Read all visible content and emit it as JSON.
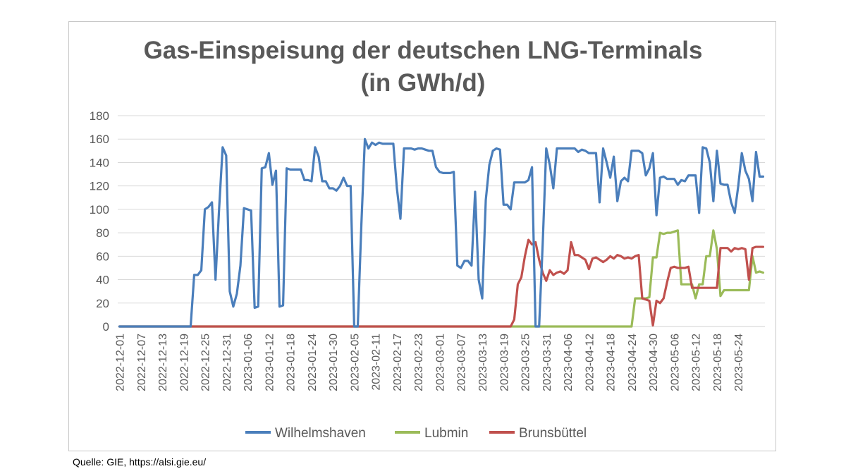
{
  "source_note": "Quelle: GIE, https://alsi.gie.eu/",
  "chart_data": {
    "type": "line",
    "title": "Gas-Einspeisung der deutschen LNG-Terminals",
    "subtitle": "(in GWh/d)",
    "ylim": [
      0,
      180
    ],
    "yticks": [
      0,
      20,
      40,
      60,
      80,
      100,
      120,
      140,
      160,
      180
    ],
    "y_tick_labels": [
      "0",
      "20",
      "40",
      "60",
      "80",
      "100",
      "120",
      "140",
      "160",
      "180"
    ],
    "grid": true,
    "legend_position": "bottom",
    "x_start": "2022-12-01",
    "x_end": "2023-05-31",
    "x_tick_labels": [
      "2022-12-01",
      "2022-12-07",
      "2022-12-13",
      "2022-12-19",
      "2022-12-25",
      "2022-12-31",
      "2023-01-06",
      "2023-01-12",
      "2023-01-18",
      "2023-01-24",
      "2023-01-30",
      "2023-02-05",
      "2023-02-11",
      "2023-02-17",
      "2023-02-23",
      "2023-03-01",
      "2023-03-07",
      "2023-03-13",
      "2023-03-19",
      "2023-03-25",
      "2023-03-31",
      "2023-04-06",
      "2023-04-12",
      "2023-04-18",
      "2023-04-24",
      "2023-04-30",
      "2023-05-06",
      "2023-05-12",
      "2023-05-18",
      "2023-05-24"
    ],
    "series": [
      {
        "name": "Wilhelmshaven",
        "color": "#4a7ebb",
        "points": [
          [
            "2022-12-01",
            0
          ],
          [
            "2022-12-21",
            0
          ],
          [
            "2022-12-22",
            44
          ],
          [
            "2022-12-23",
            44
          ],
          [
            "2022-12-24",
            48
          ],
          [
            "2022-12-25",
            100
          ],
          [
            "2022-12-26",
            102
          ],
          [
            "2022-12-27",
            106
          ],
          [
            "2022-12-28",
            40
          ],
          [
            "2022-12-29",
            100
          ],
          [
            "2022-12-30",
            153
          ],
          [
            "2022-12-31",
            146
          ],
          [
            "2023-01-01",
            30
          ],
          [
            "2023-01-02",
            17
          ],
          [
            "2023-01-03",
            28
          ],
          [
            "2023-01-04",
            52
          ],
          [
            "2023-01-05",
            101
          ],
          [
            "2023-01-06",
            100
          ],
          [
            "2023-01-07",
            99
          ],
          [
            "2023-01-08",
            16
          ],
          [
            "2023-01-09",
            17
          ],
          [
            "2023-01-10",
            135
          ],
          [
            "2023-01-11",
            136
          ],
          [
            "2023-01-12",
            148
          ],
          [
            "2023-01-13",
            121
          ],
          [
            "2023-01-14",
            133
          ],
          [
            "2023-01-15",
            17
          ],
          [
            "2023-01-16",
            18
          ],
          [
            "2023-01-17",
            135
          ],
          [
            "2023-01-18",
            134
          ],
          [
            "2023-01-19",
            134
          ],
          [
            "2023-01-20",
            134
          ],
          [
            "2023-01-21",
            134
          ],
          [
            "2023-01-22",
            125
          ],
          [
            "2023-01-23",
            125
          ],
          [
            "2023-01-24",
            124
          ],
          [
            "2023-01-25",
            153
          ],
          [
            "2023-01-26",
            145
          ],
          [
            "2023-01-27",
            124
          ],
          [
            "2023-01-28",
            124
          ],
          [
            "2023-01-29",
            118
          ],
          [
            "2023-01-30",
            118
          ],
          [
            "2023-01-31",
            116
          ],
          [
            "2023-02-01",
            120
          ],
          [
            "2023-02-02",
            127
          ],
          [
            "2023-02-03",
            120
          ],
          [
            "2023-02-04",
            120
          ],
          [
            "2023-02-05",
            0
          ],
          [
            "2023-02-06",
            0
          ],
          [
            "2023-02-07",
            86
          ],
          [
            "2023-02-08",
            160
          ],
          [
            "2023-02-09",
            152
          ],
          [
            "2023-02-10",
            157
          ],
          [
            "2023-02-11",
            155
          ],
          [
            "2023-02-12",
            157
          ],
          [
            "2023-02-13",
            156
          ],
          [
            "2023-02-14",
            156
          ],
          [
            "2023-02-15",
            156
          ],
          [
            "2023-02-16",
            156
          ],
          [
            "2023-02-17",
            118
          ],
          [
            "2023-02-18",
            92
          ],
          [
            "2023-02-19",
            152
          ],
          [
            "2023-02-20",
            152
          ],
          [
            "2023-02-21",
            152
          ],
          [
            "2023-02-22",
            151
          ],
          [
            "2023-02-23",
            152
          ],
          [
            "2023-02-24",
            152
          ],
          [
            "2023-02-25",
            151
          ],
          [
            "2023-02-26",
            150
          ],
          [
            "2023-02-27",
            150
          ],
          [
            "2023-02-28",
            136
          ],
          [
            "2023-03-01",
            132
          ],
          [
            "2023-03-02",
            131
          ],
          [
            "2023-03-03",
            131
          ],
          [
            "2023-03-04",
            131
          ],
          [
            "2023-03-05",
            132
          ],
          [
            "2023-03-06",
            52
          ],
          [
            "2023-03-07",
            50
          ],
          [
            "2023-03-08",
            56
          ],
          [
            "2023-03-09",
            56
          ],
          [
            "2023-03-10",
            52
          ],
          [
            "2023-03-11",
            115
          ],
          [
            "2023-03-12",
            40
          ],
          [
            "2023-03-13",
            24
          ],
          [
            "2023-03-14",
            108
          ],
          [
            "2023-03-15",
            138
          ],
          [
            "2023-03-16",
            150
          ],
          [
            "2023-03-17",
            152
          ],
          [
            "2023-03-18",
            151
          ],
          [
            "2023-03-19",
            104
          ],
          [
            "2023-03-20",
            104
          ],
          [
            "2023-03-21",
            100
          ],
          [
            "2023-03-22",
            123
          ],
          [
            "2023-03-23",
            123
          ],
          [
            "2023-03-24",
            123
          ],
          [
            "2023-03-25",
            123
          ],
          [
            "2023-03-26",
            125
          ],
          [
            "2023-03-27",
            136
          ],
          [
            "2023-03-28",
            0
          ],
          [
            "2023-03-29",
            0
          ],
          [
            "2023-03-30",
            70
          ],
          [
            "2023-03-31",
            152
          ],
          [
            "2023-04-01",
            138
          ],
          [
            "2023-04-02",
            118
          ],
          [
            "2023-04-03",
            152
          ],
          [
            "2023-04-04",
            152
          ],
          [
            "2023-04-05",
            152
          ],
          [
            "2023-04-06",
            152
          ],
          [
            "2023-04-07",
            152
          ],
          [
            "2023-04-08",
            152
          ],
          [
            "2023-04-09",
            149
          ],
          [
            "2023-04-10",
            151
          ],
          [
            "2023-04-11",
            150
          ],
          [
            "2023-04-12",
            148
          ],
          [
            "2023-04-13",
            148
          ],
          [
            "2023-04-14",
            148
          ],
          [
            "2023-04-15",
            106
          ],
          [
            "2023-04-16",
            152
          ],
          [
            "2023-04-17",
            140
          ],
          [
            "2023-04-18",
            127
          ],
          [
            "2023-04-19",
            145
          ],
          [
            "2023-04-20",
            107
          ],
          [
            "2023-04-21",
            124
          ],
          [
            "2023-04-22",
            127
          ],
          [
            "2023-04-23",
            124
          ],
          [
            "2023-04-24",
            150
          ],
          [
            "2023-04-25",
            150
          ],
          [
            "2023-04-26",
            150
          ],
          [
            "2023-04-27",
            148
          ],
          [
            "2023-04-28",
            129
          ],
          [
            "2023-04-29",
            135
          ],
          [
            "2023-04-30",
            148
          ],
          [
            "2023-05-01",
            95
          ],
          [
            "2023-05-02",
            127
          ],
          [
            "2023-05-03",
            128
          ],
          [
            "2023-05-04",
            126
          ],
          [
            "2023-05-05",
            126
          ],
          [
            "2023-05-06",
            126
          ],
          [
            "2023-05-07",
            121
          ],
          [
            "2023-05-08",
            125
          ],
          [
            "2023-05-09",
            124
          ],
          [
            "2023-05-10",
            129
          ],
          [
            "2023-05-11",
            129
          ],
          [
            "2023-05-12",
            129
          ],
          [
            "2023-05-13",
            97
          ],
          [
            "2023-05-14",
            153
          ],
          [
            "2023-05-15",
            152
          ],
          [
            "2023-05-16",
            140
          ],
          [
            "2023-05-17",
            107
          ],
          [
            "2023-05-18",
            150
          ],
          [
            "2023-05-19",
            122
          ],
          [
            "2023-05-20",
            121
          ],
          [
            "2023-05-21",
            121
          ],
          [
            "2023-05-22",
            106
          ],
          [
            "2023-05-23",
            97
          ],
          [
            "2023-05-24",
            120
          ],
          [
            "2023-05-25",
            148
          ],
          [
            "2023-05-26",
            133
          ],
          [
            "2023-05-27",
            126
          ],
          [
            "2023-05-28",
            107
          ],
          [
            "2023-05-29",
            149
          ],
          [
            "2023-05-30",
            128
          ],
          [
            "2023-05-31",
            128
          ]
        ]
      },
      {
        "name": "Lubmin",
        "color": "#9bbb59",
        "points": [
          [
            "2022-12-01",
            0
          ],
          [
            "2023-04-24",
            0
          ],
          [
            "2023-04-25",
            24
          ],
          [
            "2023-04-26",
            24
          ],
          [
            "2023-04-27",
            24
          ],
          [
            "2023-04-28",
            24
          ],
          [
            "2023-04-29",
            25
          ],
          [
            "2023-04-30",
            59
          ],
          [
            "2023-05-01",
            59
          ],
          [
            "2023-05-02",
            80
          ],
          [
            "2023-05-03",
            79
          ],
          [
            "2023-05-04",
            80
          ],
          [
            "2023-05-05",
            80
          ],
          [
            "2023-05-06",
            81
          ],
          [
            "2023-05-07",
            82
          ],
          [
            "2023-05-08",
            36
          ],
          [
            "2023-05-09",
            36
          ],
          [
            "2023-05-10",
            36
          ],
          [
            "2023-05-11",
            36
          ],
          [
            "2023-05-12",
            24
          ],
          [
            "2023-05-13",
            36
          ],
          [
            "2023-05-14",
            36
          ],
          [
            "2023-05-15",
            60
          ],
          [
            "2023-05-16",
            60
          ],
          [
            "2023-05-17",
            82
          ],
          [
            "2023-05-18",
            66
          ],
          [
            "2023-05-19",
            26
          ],
          [
            "2023-05-20",
            31
          ],
          [
            "2023-05-21",
            31
          ],
          [
            "2023-05-22",
            31
          ],
          [
            "2023-05-23",
            31
          ],
          [
            "2023-05-24",
            31
          ],
          [
            "2023-05-25",
            31
          ],
          [
            "2023-05-26",
            31
          ],
          [
            "2023-05-27",
            31
          ],
          [
            "2023-05-28",
            60
          ],
          [
            "2023-05-29",
            46
          ],
          [
            "2023-05-30",
            47
          ],
          [
            "2023-05-31",
            46
          ]
        ]
      },
      {
        "name": "Brunsbüttel",
        "color": "#c0504d",
        "points": [
          [
            "2022-12-01",
            0
          ],
          [
            "2023-03-21",
            0
          ],
          [
            "2023-03-22",
            6
          ],
          [
            "2023-03-23",
            36
          ],
          [
            "2023-03-24",
            42
          ],
          [
            "2023-03-25",
            60
          ],
          [
            "2023-03-26",
            74
          ],
          [
            "2023-03-27",
            70
          ],
          [
            "2023-03-28",
            72
          ],
          [
            "2023-03-29",
            57
          ],
          [
            "2023-03-30",
            46
          ],
          [
            "2023-03-31",
            39
          ],
          [
            "2023-04-01",
            48
          ],
          [
            "2023-04-02",
            44
          ],
          [
            "2023-04-03",
            46
          ],
          [
            "2023-04-04",
            47
          ],
          [
            "2023-04-05",
            45
          ],
          [
            "2023-04-06",
            48
          ],
          [
            "2023-04-07",
            72
          ],
          [
            "2023-04-08",
            61
          ],
          [
            "2023-04-09",
            61
          ],
          [
            "2023-04-10",
            59
          ],
          [
            "2023-04-11",
            57
          ],
          [
            "2023-04-12",
            49
          ],
          [
            "2023-04-13",
            58
          ],
          [
            "2023-04-14",
            59
          ],
          [
            "2023-04-15",
            57
          ],
          [
            "2023-04-16",
            55
          ],
          [
            "2023-04-17",
            57
          ],
          [
            "2023-04-18",
            60
          ],
          [
            "2023-04-19",
            58
          ],
          [
            "2023-04-20",
            61
          ],
          [
            "2023-04-21",
            60
          ],
          [
            "2023-04-22",
            58
          ],
          [
            "2023-04-23",
            59
          ],
          [
            "2023-04-24",
            58
          ],
          [
            "2023-04-25",
            60
          ],
          [
            "2023-04-26",
            61
          ],
          [
            "2023-04-27",
            24
          ],
          [
            "2023-04-28",
            23
          ],
          [
            "2023-04-29",
            22
          ],
          [
            "2023-04-30",
            1
          ],
          [
            "2023-05-01",
            22
          ],
          [
            "2023-05-02",
            20
          ],
          [
            "2023-05-03",
            24
          ],
          [
            "2023-05-04",
            38
          ],
          [
            "2023-05-05",
            50
          ],
          [
            "2023-05-06",
            51
          ],
          [
            "2023-05-07",
            50
          ],
          [
            "2023-05-08",
            50
          ],
          [
            "2023-05-09",
            50
          ],
          [
            "2023-05-10",
            51
          ],
          [
            "2023-05-11",
            33
          ],
          [
            "2023-05-12",
            33
          ],
          [
            "2023-05-13",
            33
          ],
          [
            "2023-05-14",
            33
          ],
          [
            "2023-05-15",
            33
          ],
          [
            "2023-05-16",
            33
          ],
          [
            "2023-05-17",
            33
          ],
          [
            "2023-05-18",
            33
          ],
          [
            "2023-05-19",
            67
          ],
          [
            "2023-05-20",
            67
          ],
          [
            "2023-05-21",
            67
          ],
          [
            "2023-05-22",
            64
          ],
          [
            "2023-05-23",
            67
          ],
          [
            "2023-05-24",
            66
          ],
          [
            "2023-05-25",
            67
          ],
          [
            "2023-05-26",
            66
          ],
          [
            "2023-05-27",
            40
          ],
          [
            "2023-05-28",
            67
          ],
          [
            "2023-05-29",
            68
          ],
          [
            "2023-05-30",
            68
          ],
          [
            "2023-05-31",
            68
          ]
        ]
      }
    ]
  }
}
